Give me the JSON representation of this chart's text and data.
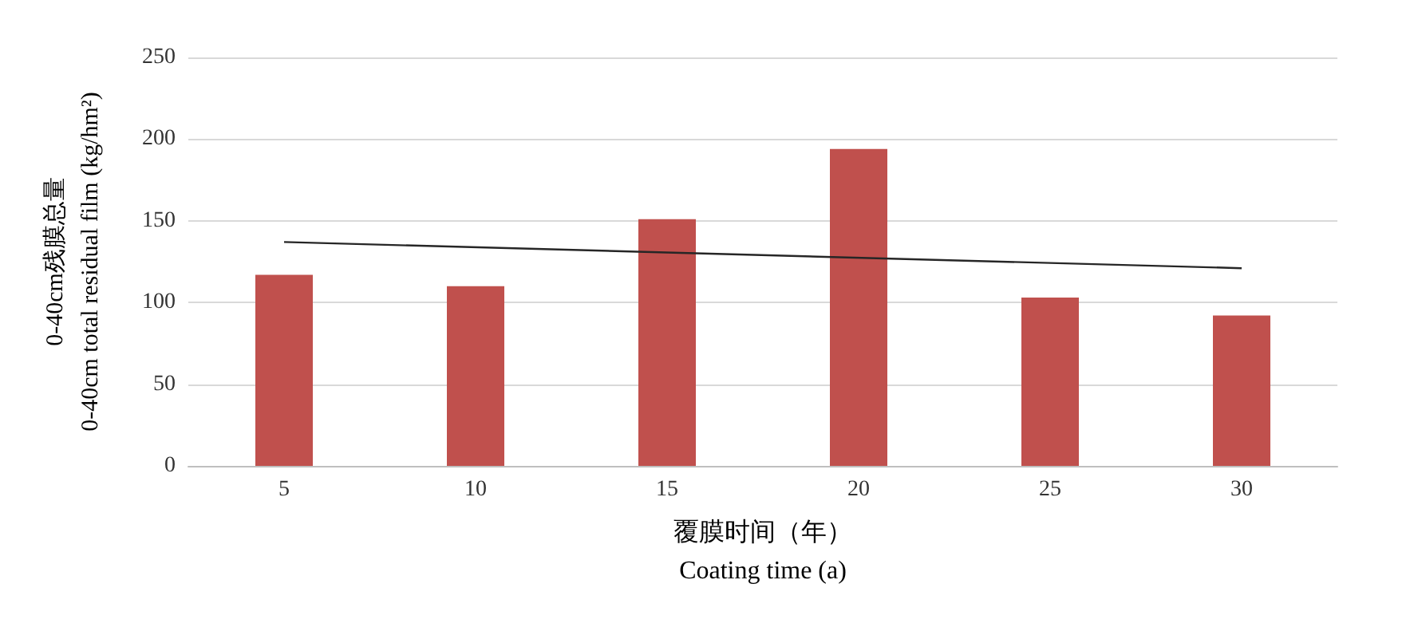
{
  "chart_data": {
    "type": "bar",
    "categories": [
      "5",
      "10",
      "15",
      "20",
      "25",
      "30"
    ],
    "xlabel": "覆膜时间（年）\nCoating time (a)",
    "ylabel": "0-40cm残膜总量\n0-40cm total residual film (kg/hm²)",
    "ylim": [
      0,
      250
    ],
    "yticks": [
      0,
      50,
      100,
      150,
      200,
      250
    ],
    "grid": "y",
    "series": [
      {
        "color": "#c0504d",
        "values": [
          117,
          110,
          151,
          194,
          103,
          92
        ]
      },
      {
        "type": "line",
        "color": "#262626",
        "x": [
          "5",
          "30"
        ],
        "values": [
          137,
          121
        ]
      }
    ]
  }
}
